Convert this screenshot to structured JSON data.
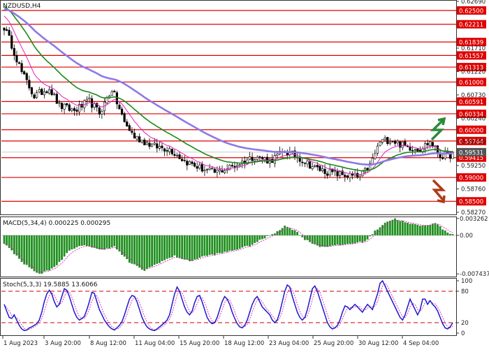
{
  "colors": {
    "candles": "#000000",
    "ma_fast": "#e020c0",
    "ma_mid": "#1a8a1a",
    "ma_slow": "#8c7ae6",
    "levels": "#e00000",
    "macd_hist": "#1f8f1f",
    "macd_signal": "#e020c0",
    "stoch_k": "#1a1acc",
    "stoch_d": "#e020c0",
    "stoch_bounds": "#cc0000",
    "arrow_up": "#2d8a3a",
    "arrow_down": "#b03a1a"
  },
  "arrows": [
    {
      "icon": "arrow-up-icon"
    },
    {
      "icon": "arrow-down-icon"
    }
  ],
  "chart_data": [
    {
      "type": "candlestick",
      "title": "NZDUSD,H4",
      "ylim": [
        0.5824,
        0.6269
      ],
      "y_ticks": [
        "0.62690",
        "0.61710",
        "0.61220",
        "0.60730",
        "0.60240",
        "0.59750",
        "0.59250",
        "0.58760",
        "0.58270"
      ],
      "levels": [
        {
          "value": 0.625,
          "label": "0.62500"
        },
        {
          "value": 0.62211,
          "label": "0.62211"
        },
        {
          "value": 0.61839,
          "label": "0.61839"
        },
        {
          "value": 0.61557,
          "label": "0.61557"
        },
        {
          "value": 0.61313,
          "label": "0.61313"
        },
        {
          "value": 0.61,
          "label": "0.61000"
        },
        {
          "value": 0.60591,
          "label": "0.60591"
        },
        {
          "value": 0.60334,
          "label": "0.60334"
        },
        {
          "value": 0.6,
          "label": "0.60000"
        },
        {
          "value": 0.59764,
          "label": "0.59764"
        },
        {
          "value": 0.59415,
          "label": "0.59415"
        },
        {
          "value": 0.59,
          "label": "0.59000"
        },
        {
          "value": 0.585,
          "label": "0.58500"
        }
      ],
      "current_price": {
        "value": 0.5953,
        "label": "0.59531"
      },
      "x_labels": [
        "1 Aug 2023",
        "3 Aug 20:00",
        "8 Aug 12:00",
        "11 Aug 04:00",
        "15 Aug 20:00",
        "18 Aug 12:00",
        "23 Aug 04:00",
        "25 Aug 20:00",
        "30 Aug 12:00",
        "4 Sep 04:00"
      ],
      "anchors": [
        {
          "bar": 0,
          "price": 0.6215
        },
        {
          "bar": 3,
          "price": 0.6178
        },
        {
          "bar": 7,
          "price": 0.612
        },
        {
          "bar": 12,
          "price": 0.607
        },
        {
          "bar": 18,
          "price": 0.6088
        },
        {
          "bar": 22,
          "price": 0.605
        },
        {
          "bar": 28,
          "price": 0.604
        },
        {
          "bar": 34,
          "price": 0.606
        },
        {
          "bar": 38,
          "price": 0.6035
        },
        {
          "bar": 43,
          "price": 0.6085
        },
        {
          "bar": 48,
          "price": 0.6015
        },
        {
          "bar": 52,
          "price": 0.5985
        },
        {
          "bar": 60,
          "price": 0.5965
        },
        {
          "bar": 66,
          "price": 0.596
        },
        {
          "bar": 72,
          "price": 0.5935
        },
        {
          "bar": 78,
          "price": 0.592
        },
        {
          "bar": 84,
          "price": 0.591
        },
        {
          "bar": 92,
          "price": 0.5925
        },
        {
          "bar": 100,
          "price": 0.5945
        },
        {
          "bar": 106,
          "price": 0.5935
        },
        {
          "bar": 112,
          "price": 0.5955
        },
        {
          "bar": 118,
          "price": 0.594
        },
        {
          "bar": 124,
          "price": 0.592
        },
        {
          "bar": 130,
          "price": 0.591
        },
        {
          "bar": 136,
          "price": 0.5905
        },
        {
          "bar": 142,
          "price": 0.59
        },
        {
          "bar": 146,
          "price": 0.5925
        },
        {
          "bar": 150,
          "price": 0.5975
        },
        {
          "bar": 154,
          "price": 0.598
        },
        {
          "bar": 160,
          "price": 0.5965
        },
        {
          "bar": 166,
          "price": 0.596
        },
        {
          "bar": 170,
          "price": 0.5975
        },
        {
          "bar": 174,
          "price": 0.5945
        },
        {
          "bar": 179,
          "price": 0.5948
        }
      ]
    },
    {
      "type": "bar",
      "title": "MACD(5,34,4) 0.000225 0.000295",
      "ylim": [
        -0.00795,
        0.0035
      ],
      "y_ticks": [
        "0.003262",
        "0.00",
        "-0.007437"
      ],
      "anchors": [
        {
          "bar": 0,
          "value": -0.0015
        },
        {
          "bar": 8,
          "value": -0.0055
        },
        {
          "bar": 14,
          "value": -0.0075
        },
        {
          "bar": 20,
          "value": -0.0062
        },
        {
          "bar": 26,
          "value": -0.003
        },
        {
          "bar": 32,
          "value": -0.0018
        },
        {
          "bar": 38,
          "value": -0.0028
        },
        {
          "bar": 44,
          "value": -0.0022
        },
        {
          "bar": 50,
          "value": -0.0052
        },
        {
          "bar": 56,
          "value": -0.0068
        },
        {
          "bar": 62,
          "value": -0.0052
        },
        {
          "bar": 68,
          "value": -0.004
        },
        {
          "bar": 74,
          "value": -0.005
        },
        {
          "bar": 80,
          "value": -0.004
        },
        {
          "bar": 86,
          "value": -0.0035
        },
        {
          "bar": 92,
          "value": -0.0028
        },
        {
          "bar": 98,
          "value": -0.002
        },
        {
          "bar": 104,
          "value": -0.0005
        },
        {
          "bar": 108,
          "value": 0.0005
        },
        {
          "bar": 112,
          "value": 0.0018
        },
        {
          "bar": 116,
          "value": 0.001
        },
        {
          "bar": 120,
          "value": -0.0008
        },
        {
          "bar": 126,
          "value": -0.0022
        },
        {
          "bar": 132,
          "value": -0.002
        },
        {
          "bar": 138,
          "value": -0.0016
        },
        {
          "bar": 144,
          "value": -0.0012
        },
        {
          "bar": 148,
          "value": 0.0008
        },
        {
          "bar": 152,
          "value": 0.0025
        },
        {
          "bar": 156,
          "value": 0.0032
        },
        {
          "bar": 162,
          "value": 0.0022
        },
        {
          "bar": 168,
          "value": 0.0018
        },
        {
          "bar": 172,
          "value": 0.0025
        },
        {
          "bar": 176,
          "value": 0.0008
        },
        {
          "bar": 179,
          "value": 0.00022
        }
      ]
    },
    {
      "type": "line",
      "title": "Stoch(5,3,3) 19.5885 13.6066",
      "ylim": [
        0,
        100
      ],
      "y_ticks": [
        "100",
        "80",
        "20",
        "0"
      ],
      "bounds": [
        80,
        20
      ],
      "series": [
        {
          "values": [
            55,
            42,
            30,
            28,
            35,
            25,
            15,
            8,
            5,
            6,
            10,
            12,
            15,
            18,
            25,
            40,
            60,
            75,
            82,
            75,
            60,
            50,
            55,
            70,
            85,
            82,
            70,
            55,
            40,
            30,
            25,
            28,
            32,
            45,
            60,
            78,
            76,
            60,
            45,
            35,
            25,
            18,
            12,
            8,
            6,
            10,
            15,
            22,
            35,
            50,
            65,
            72,
            70,
            60,
            45,
            30,
            20,
            12,
            8,
            6,
            5,
            8,
            12,
            16,
            20,
            25,
            35,
            55,
            75,
            88,
            80,
            65,
            50,
            40,
            35,
            42,
            58,
            70,
            72,
            60,
            45,
            30,
            22,
            18,
            20,
            30,
            45,
            60,
            70,
            65,
            55,
            40,
            28,
            18,
            12,
            10,
            15,
            25,
            40,
            55,
            65,
            70,
            60,
            50,
            45,
            40,
            35,
            25,
            20,
            25,
            40,
            60,
            80,
            92,
            88,
            70,
            55,
            40,
            30,
            25,
            30,
            45,
            65,
            85,
            90,
            80,
            65,
            50,
            35,
            20,
            12,
            8,
            10,
            15,
            25,
            40,
            52,
            50,
            45,
            50,
            55,
            50,
            45,
            40,
            48,
            55,
            50,
            45,
            60,
            75,
            95,
            100,
            90,
            80,
            70,
            60,
            50,
            40,
            30,
            25,
            35,
            50,
            65,
            55,
            45,
            35,
            45,
            65,
            65,
            55,
            62,
            55,
            50,
            42,
            30,
            18,
            10,
            8,
            12,
            19.6
          ]
        }
      ]
    }
  ]
}
